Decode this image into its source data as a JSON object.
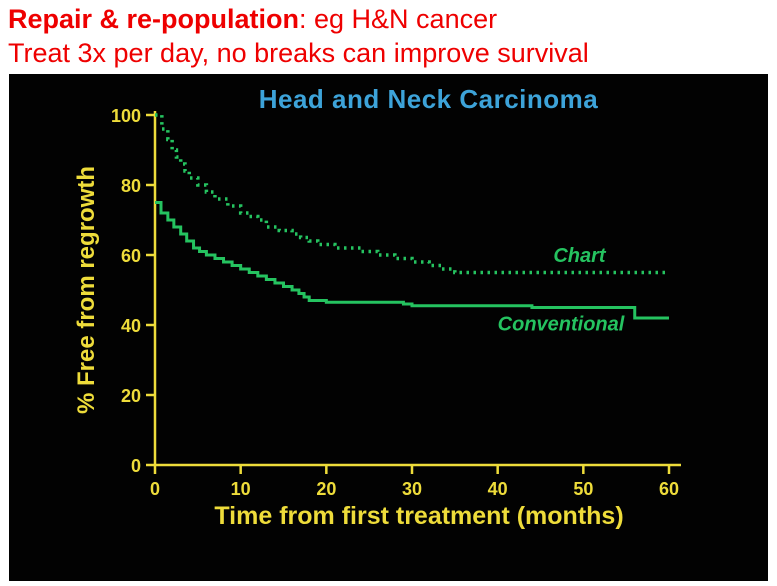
{
  "header": {
    "line1_bold": "Repair & re-population",
    "line1_rest": ": eg H&N cancer",
    "line2": "Treat 3x per day, no breaks can improve survival"
  },
  "chart_data": {
    "type": "line",
    "subtype": "kaplan-meier-step",
    "title": "Head and Neck Carcinoma",
    "xlabel": "Time from first treatment (months)",
    "ylabel": "% Free from regrowth",
    "xlim": [
      0,
      60
    ],
    "ylim": [
      0,
      100
    ],
    "xticks": [
      0,
      10,
      20,
      30,
      40,
      50,
      60
    ],
    "yticks": [
      0,
      20,
      40,
      60,
      80,
      100
    ],
    "grid": false,
    "legend_position": "inline-labels",
    "colors": {
      "axis": "#eedc3a",
      "title": "#3da3d9",
      "series": "#25c360",
      "background": "#020202",
      "header_text": "#ee0000"
    },
    "series": [
      {
        "name": "Chart",
        "style": "dotted",
        "label_pos": {
          "x": 46.5,
          "y": 58
        },
        "points": [
          [
            0,
            100
          ],
          [
            0.8,
            96
          ],
          [
            1.5,
            93
          ],
          [
            2,
            90
          ],
          [
            2.5,
            88
          ],
          [
            3,
            86
          ],
          [
            3.5,
            84
          ],
          [
            4,
            82
          ],
          [
            5,
            80
          ],
          [
            6,
            78
          ],
          [
            7,
            76
          ],
          [
            8.5,
            74
          ],
          [
            10,
            72
          ],
          [
            11,
            71
          ],
          [
            12,
            70
          ],
          [
            13,
            68
          ],
          [
            14.5,
            67
          ],
          [
            16,
            66
          ],
          [
            17,
            65
          ],
          [
            18,
            64
          ],
          [
            19,
            63
          ],
          [
            21,
            62
          ],
          [
            24,
            61
          ],
          [
            26,
            60
          ],
          [
            28,
            59
          ],
          [
            30,
            58
          ],
          [
            32,
            57
          ],
          [
            33.5,
            56
          ],
          [
            35,
            55
          ],
          [
            60,
            55
          ]
        ]
      },
      {
        "name": "Conventional",
        "style": "solid",
        "label_pos": {
          "x": 40,
          "y": 38.5
        },
        "points": [
          [
            0,
            75
          ],
          [
            0.7,
            72
          ],
          [
            1.5,
            70
          ],
          [
            2.2,
            68
          ],
          [
            3,
            66
          ],
          [
            3.7,
            64
          ],
          [
            4.5,
            62
          ],
          [
            5.2,
            61
          ],
          [
            6,
            60
          ],
          [
            7,
            59
          ],
          [
            8,
            58
          ],
          [
            9,
            57
          ],
          [
            10,
            56
          ],
          [
            11,
            55
          ],
          [
            12,
            54
          ],
          [
            13,
            53
          ],
          [
            14,
            52
          ],
          [
            15,
            51
          ],
          [
            16,
            50
          ],
          [
            16.8,
            49
          ],
          [
            17.4,
            48
          ],
          [
            18,
            47
          ],
          [
            20,
            46.5
          ],
          [
            29,
            46
          ],
          [
            30,
            45.5
          ],
          [
            44,
            45
          ],
          [
            56,
            42
          ],
          [
            60,
            42
          ]
        ]
      }
    ]
  }
}
